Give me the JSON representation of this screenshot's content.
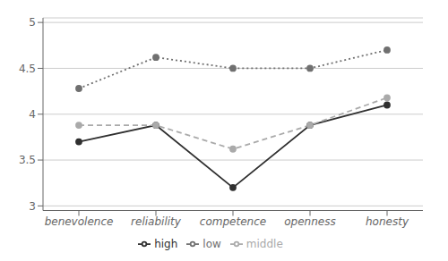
{
  "chart_data": {
    "type": "line",
    "categories": [
      "benevolence",
      "reliability",
      "competence",
      "openness",
      "honesty"
    ],
    "series": [
      {
        "name": "high",
        "color": "#303030",
        "line_style": "solid",
        "marker": "circle",
        "values": [
          3.7,
          3.88,
          3.2,
          3.88,
          4.1
        ]
      },
      {
        "name": "middle",
        "color": "#aaaaaa",
        "line_style": "dashed",
        "marker": "circle",
        "values": [
          3.88,
          3.88,
          3.62,
          3.88,
          4.18
        ]
      },
      {
        "name": "low",
        "color": "#707070",
        "line_style": "dotted",
        "marker": "circle",
        "values": [
          4.28,
          4.62,
          4.5,
          4.5,
          4.7
        ]
      }
    ],
    "ylim": [
      2.95,
      5.05
    ],
    "yticks": [
      3,
      3.5,
      4,
      4.5,
      5
    ],
    "grid": true,
    "legend": "bottom"
  }
}
